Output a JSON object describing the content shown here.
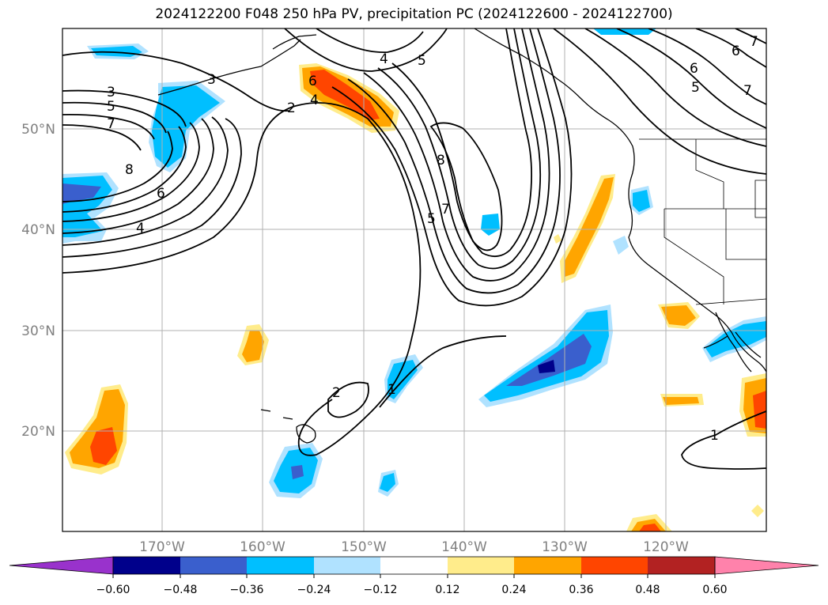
{
  "title": "2024122200 F048 250 hPa PV, precipitation PC (2024122600 - 2024122700)",
  "map": {
    "lon_labels": [
      {
        "lon": -170,
        "text": "170°W"
      },
      {
        "lon": -160,
        "text": "160°W"
      },
      {
        "lon": -150,
        "text": "150°W"
      },
      {
        "lon": -140,
        "text": "140°W"
      },
      {
        "lon": -130,
        "text": "130°W"
      },
      {
        "lon": -120,
        "text": "120°W"
      }
    ],
    "lat_labels": [
      {
        "lat": 50,
        "text": "50°N"
      },
      {
        "lat": 40,
        "text": "40°N"
      },
      {
        "lat": 30,
        "text": "30°N"
      },
      {
        "lat": 20,
        "text": "20°N"
      }
    ],
    "extent": {
      "lon_min": -180,
      "lon_max": -110,
      "lat_min": 10,
      "lat_max": 60
    }
  },
  "contour_labels": [
    "1",
    "2",
    "3",
    "4",
    "5",
    "6",
    "7",
    "8"
  ],
  "colorbar": {
    "ticks": [
      "−0.60",
      "−0.48",
      "−0.36",
      "−0.24",
      "−0.12",
      "0.12",
      "0.24",
      "0.36",
      "0.48",
      "0.60"
    ],
    "colors": [
      "#9932cc",
      "#00008b",
      "#3a5fcd",
      "#00bfff",
      "#b0e2ff",
      "#ffffff",
      "#ffec8b",
      "#ffa500",
      "#ff4500",
      "#b22222",
      "#ff82ab"
    ]
  },
  "palette": {
    "purple": "#9932cc",
    "navy": "#00008b",
    "royal": "#3a5fcd",
    "sky": "#00bfff",
    "lightsky": "#b0e2ff",
    "lightyellow": "#ffec8b",
    "orange": "#ffa500",
    "orangered": "#ff4500",
    "firebrick": "#b22222",
    "pink": "#ff82ab"
  }
}
